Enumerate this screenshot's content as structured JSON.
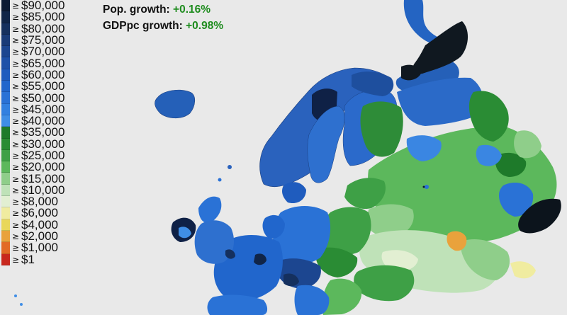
{
  "stats": {
    "pop_label": "Pop. growth:",
    "pop_value": "+0.16%",
    "gdp_label": "GDPpc growth:",
    "gdp_value": "+0.98%"
  },
  "legend": {
    "symbol": "≥",
    "currency": "$",
    "items": [
      {
        "amount": "90,000",
        "color": "#0b1a33"
      },
      {
        "amount": "85,000",
        "color": "#102548"
      },
      {
        "amount": "80,000",
        "color": "#15305e"
      },
      {
        "amount": "75,000",
        "color": "#193b78"
      },
      {
        "amount": "70,000",
        "color": "#1c4690"
      },
      {
        "amount": "65,000",
        "color": "#1e51a8"
      },
      {
        "amount": "60,000",
        "color": "#1f5cbe"
      },
      {
        "amount": "55,000",
        "color": "#2166cc"
      },
      {
        "amount": "50,000",
        "color": "#2a72d6"
      },
      {
        "amount": "45,000",
        "color": "#3280e0"
      },
      {
        "amount": "40,000",
        "color": "#3f8ee6"
      },
      {
        "amount": "35,000",
        "color": "#1e7a2a"
      },
      {
        "amount": "30,000",
        "color": "#2a8c34"
      },
      {
        "amount": "25,000",
        "color": "#3ea046"
      },
      {
        "amount": "20,000",
        "color": "#5cb85c"
      },
      {
        "amount": "15,000",
        "color": "#8fce8a"
      },
      {
        "amount": "10,000",
        "color": "#bfe2b8"
      },
      {
        "amount": "8,000",
        "color": "#e2efd2"
      },
      {
        "amount": "6,000",
        "color": "#f0eca0"
      },
      {
        "amount": "4,000",
        "color": "#e9d75a"
      },
      {
        "amount": "2,000",
        "color": "#e9a23c"
      },
      {
        "amount": "1,000",
        "color": "#e26a26"
      },
      {
        "amount": "1",
        "color": "#c8281e"
      }
    ]
  }
}
